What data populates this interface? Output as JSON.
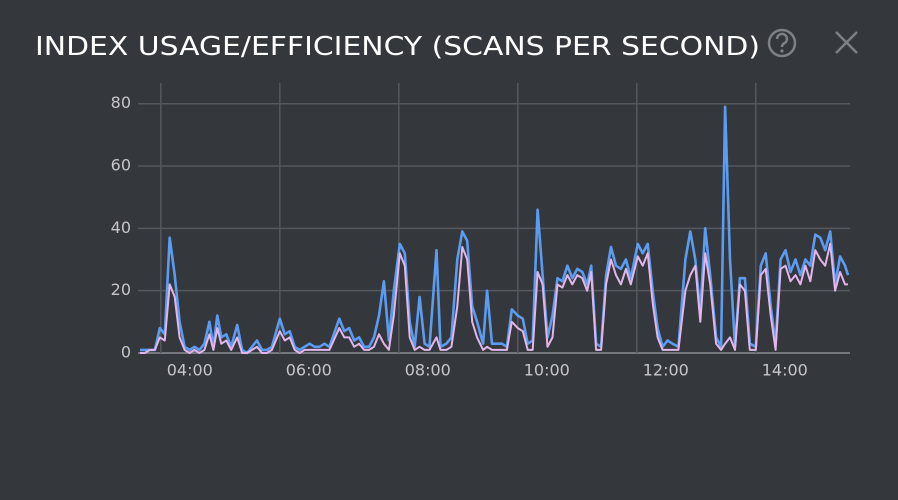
{
  "chart_data": {
    "type": "line",
    "title": "INDEX USAGE/EFFICIENCY (SCANS PER SECOND)",
    "x": [
      "03:39",
      "03:44",
      "03:49",
      "03:54",
      "03:59",
      "04:04",
      "04:09",
      "04:14",
      "04:19",
      "04:24",
      "04:29",
      "04:34",
      "04:39",
      "04:44",
      "04:49",
      "04:53",
      "04:57",
      "05:01",
      "05:06",
      "05:11",
      "05:17",
      "05:22",
      "05:27",
      "05:32",
      "05:37",
      "05:42",
      "05:47",
      "05:52",
      "06:00",
      "06:05",
      "06:10",
      "06:15",
      "06:20",
      "06:25",
      "06:30",
      "06:35",
      "06:40",
      "06:45",
      "06:50",
      "07:00",
      "07:05",
      "07:10",
      "07:15",
      "07:20",
      "07:25",
      "07:30",
      "07:35",
      "07:40",
      "07:45",
      "07:50",
      "07:55",
      "08:01",
      "08:06",
      "08:11",
      "08:16",
      "08:21",
      "08:26",
      "08:31",
      "08:38",
      "08:42",
      "08:48",
      "08:53",
      "08:59",
      "09:04",
      "09:09",
      "09:14",
      "09:19",
      "09:25",
      "09:29",
      "09:34",
      "09:39",
      "09:44",
      "09:49",
      "09:54",
      "10:00",
      "10:05",
      "10:10",
      "10:15",
      "10:20",
      "10:25",
      "10:30",
      "10:35",
      "10:40",
      "10:45",
      "10:50",
      "10:55",
      "11:00",
      "11:05",
      "11:10",
      "11:14",
      "11:19",
      "11:24",
      "11:29",
      "11:34",
      "11:39",
      "11:44",
      "11:49",
      "11:54",
      "12:01",
      "12:06",
      "12:11",
      "12:16",
      "12:21",
      "12:26",
      "12:31",
      "12:36",
      "12:42",
      "12:49",
      "12:54",
      "12:59",
      "13:04",
      "13:09",
      "13:14",
      "13:20",
      "13:25",
      "13:29",
      "13:34",
      "13:39",
      "13:44",
      "13:49",
      "13:54",
      "14:00",
      "14:05",
      "14:10",
      "14:15",
      "14:20",
      "14:25",
      "14:30",
      "14:35",
      "14:40",
      "14:45",
      "14:50",
      "14:55",
      "15:00",
      "15:05",
      "15:10",
      "15:15",
      "15:20",
      "15:25",
      "15:30",
      "15:33"
    ],
    "series": [
      {
        "color": "#5b9cf0",
        "values": [
          1,
          1,
          1,
          1,
          8,
          6,
          37,
          25,
          10,
          2,
          1,
          2,
          1,
          3,
          10,
          2,
          12,
          5,
          6,
          2,
          9,
          1,
          0,
          2,
          4,
          1,
          1,
          2,
          11,
          6,
          7,
          2,
          1,
          2,
          3,
          2,
          2,
          3,
          2,
          11,
          7,
          8,
          4,
          5,
          2,
          2,
          5,
          12,
          23,
          4,
          20,
          35,
          32,
          10,
          2,
          18,
          3,
          2,
          33,
          2,
          3,
          5,
          30,
          39,
          36,
          15,
          10,
          3,
          20,
          3,
          3,
          3,
          2,
          14,
          12,
          11,
          3,
          4,
          46,
          25,
          5,
          12,
          24,
          23,
          28,
          24,
          27,
          26,
          22,
          28,
          3,
          2,
          25,
          34,
          28,
          27,
          30,
          24,
          35,
          32,
          35,
          20,
          8,
          2,
          4,
          3,
          2,
          30,
          39,
          30,
          13,
          40,
          25,
          5,
          2,
          79,
          30,
          2,
          24,
          24,
          3,
          2,
          28,
          32,
          15,
          3,
          30,
          33,
          26,
          30,
          25,
          30,
          28,
          38,
          37,
          33,
          39,
          22,
          31,
          28,
          25
        ]
      },
      {
        "color": "#e2b6ea",
        "values": [
          0,
          0,
          1,
          1,
          5,
          4,
          22,
          18,
          5,
          1,
          0,
          1,
          0,
          1,
          6,
          1,
          8,
          3,
          4,
          1,
          5,
          0,
          0,
          1,
          2,
          0,
          0,
          1,
          7,
          4,
          5,
          1,
          0,
          1,
          1,
          1,
          1,
          1,
          1,
          8,
          5,
          5,
          2,
          3,
          1,
          1,
          2,
          6,
          3,
          1,
          12,
          32,
          28,
          5,
          1,
          2,
          1,
          1,
          5,
          1,
          1,
          2,
          15,
          34,
          30,
          10,
          5,
          1,
          2,
          1,
          1,
          1,
          1,
          10,
          8,
          7,
          1,
          1,
          26,
          22,
          2,
          5,
          22,
          21,
          25,
          22,
          25,
          24,
          20,
          26,
          1,
          1,
          22,
          30,
          25,
          22,
          27,
          22,
          31,
          28,
          32,
          16,
          5,
          1,
          1,
          1,
          1,
          20,
          25,
          28,
          10,
          32,
          22,
          3,
          1,
          3,
          5,
          1,
          22,
          20,
          1,
          1,
          25,
          27,
          12,
          1,
          27,
          28,
          23,
          25,
          22,
          28,
          23,
          33,
          30,
          28,
          35,
          20,
          26,
          22,
          22
        ]
      }
    ],
    "xlim": [
      "03:37",
      "15:35"
    ],
    "xticks": [
      "04:00",
      "06:00",
      "08:00",
      "10:00",
      "12:00",
      "14:00"
    ],
    "ylim": [
      0,
      86
    ],
    "yticks": [
      0,
      20,
      40,
      60,
      80
    ],
    "grid": true
  }
}
